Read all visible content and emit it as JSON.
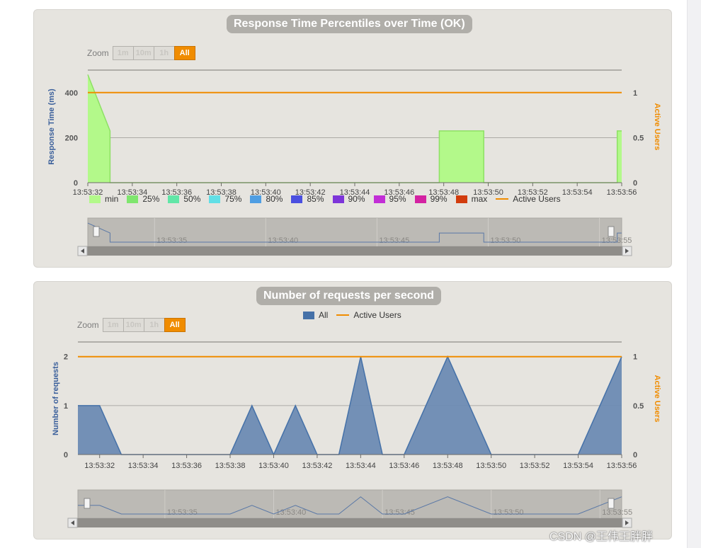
{
  "page": {
    "watermark": "CSDN @王伟王胖胖"
  },
  "colors": {
    "panel_bg": "#e6e4df",
    "title_bg": "#b0aea9",
    "active_users": "#f08c00",
    "requests_fill": "#6d8bb3",
    "requests_line": "#4571a8",
    "min_fill": "#b3f98a",
    "left_axis_title": "#3a5f9b",
    "right_axis_title": "#f08c00"
  },
  "charts": [
    {
      "title": "Response Time Percentiles over Time (OK)",
      "zoom": {
        "label": "Zoom",
        "buttons": [
          "1m",
          "10m",
          "1h",
          "All"
        ],
        "active": "All"
      },
      "legend": [
        {
          "name": "min",
          "color": "#b3f98a"
        },
        {
          "name": "25%",
          "color": "#7fe66e"
        },
        {
          "name": "50%",
          "color": "#61e6a7"
        },
        {
          "name": "75%",
          "color": "#61dfe6"
        },
        {
          "name": "80%",
          "color": "#4f9ee3"
        },
        {
          "name": "85%",
          "color": "#4a4fe0"
        },
        {
          "name": "90%",
          "color": "#7d35d9"
        },
        {
          "name": "95%",
          "color": "#c22ed6"
        },
        {
          "name": "99%",
          "color": "#d422a2"
        },
        {
          "name": "max",
          "color": "#d23c0d"
        },
        {
          "name": "Active Users",
          "color": "#f08c00",
          "line": true
        }
      ],
      "navigator_labels": [
        "13:53:35",
        "13:53:40",
        "13:53:45",
        "13:53:50",
        "13:53:55"
      ]
    },
    {
      "title": "Number of requests per second",
      "zoom": {
        "label": "Zoom",
        "buttons": [
          "1m",
          "10m",
          "1h",
          "All"
        ],
        "active": "All"
      },
      "legend": [
        {
          "name": "All",
          "color": "#4571a8"
        },
        {
          "name": "Active Users",
          "color": "#f08c00",
          "line": true
        }
      ],
      "navigator_labels": [
        "13:53:35",
        "13:53:40",
        "13:53:45",
        "13:53:50",
        "13:53:55"
      ]
    }
  ],
  "chart_data": [
    {
      "type": "area",
      "title": "Response Time Percentiles over Time (OK)",
      "ylabel": "Response Time (ms)",
      "y2label": "Active Users",
      "ylim": [
        0,
        500
      ],
      "yticks": [
        0,
        200,
        400
      ],
      "y2lim": [
        0,
        1.25
      ],
      "y2ticks": [
        "0",
        "0.5",
        "1"
      ],
      "x": [
        "13:53:32",
        "13:53:34",
        "13:53:36",
        "13:53:38",
        "13:53:40",
        "13:53:42",
        "13:53:44",
        "13:53:46",
        "13:53:48",
        "13:53:50",
        "13:53:52",
        "13:53:54",
        "13:53:56"
      ],
      "x_seconds": [
        32,
        34,
        36,
        38,
        40,
        42,
        44,
        46,
        48,
        50,
        52,
        54,
        56
      ],
      "series": [
        {
          "name": "min",
          "type": "area",
          "points": [
            [
              32,
              480
            ],
            [
              33,
              230
            ],
            [
              33,
              0
            ],
            [
              47.8,
              0
            ],
            [
              47.8,
              230
            ],
            [
              49.8,
              230
            ],
            [
              49.8,
              0
            ],
            [
              55.8,
              0
            ],
            [
              55.8,
              230
            ],
            [
              56,
              230
            ]
          ]
        },
        {
          "name": "Active Users",
          "type": "line",
          "axis": "right",
          "points": [
            [
              32,
              1
            ],
            [
              56,
              1
            ]
          ]
        }
      ],
      "grid": true
    },
    {
      "type": "area",
      "title": "Number of requests per second",
      "ylabel": "Number of requests",
      "y2label": "Active Users",
      "ylim": [
        0,
        2.3
      ],
      "yticks": [
        0,
        1,
        2
      ],
      "y2lim": [
        0,
        1.15
      ],
      "y2ticks": [
        "0",
        "0.5",
        "1"
      ],
      "x": [
        "13:53:32",
        "13:53:34",
        "13:53:36",
        "13:53:38",
        "13:53:40",
        "13:53:42",
        "13:53:44",
        "13:53:46",
        "13:53:48",
        "13:53:50",
        "13:53:52",
        "13:53:54",
        "13:53:56"
      ],
      "x_seconds": [
        32,
        34,
        36,
        38,
        40,
        42,
        44,
        46,
        48,
        50,
        52,
        54,
        56
      ],
      "series": [
        {
          "name": "All",
          "type": "area",
          "points": [
            [
              31,
              1
            ],
            [
              32,
              1
            ],
            [
              33,
              0
            ],
            [
              38,
              0
            ],
            [
              39,
              1
            ],
            [
              40,
              0
            ],
            [
              41,
              1
            ],
            [
              42,
              0
            ],
            [
              43,
              0
            ],
            [
              44,
              2
            ],
            [
              45,
              0
            ],
            [
              46,
              0
            ],
            [
              48,
              2
            ],
            [
              50,
              0
            ],
            [
              54,
              0
            ],
            [
              56,
              2
            ]
          ]
        },
        {
          "name": "Active Users",
          "type": "line",
          "axis": "right",
          "points": [
            [
              31,
              1
            ],
            [
              56,
              1
            ]
          ]
        }
      ],
      "grid": true
    }
  ]
}
